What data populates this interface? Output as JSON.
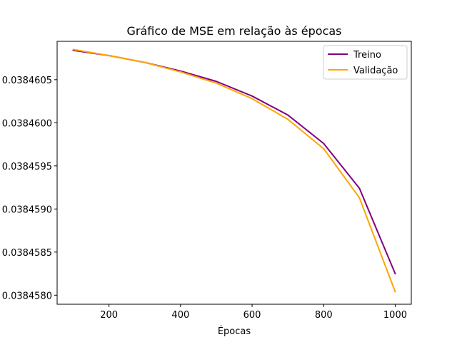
{
  "chart_data": {
    "type": "line",
    "title": "Gráfico de MSE em relação às épocas",
    "xlabel": "Épocas",
    "ylabel": "",
    "x": [
      100,
      200,
      300,
      400,
      500,
      600,
      700,
      800,
      900,
      1000
    ],
    "series": [
      {
        "name": "Treino",
        "color": "#800080",
        "values": [
          0.03846084,
          0.03846078,
          0.0384607,
          0.0384606,
          0.03846048,
          0.03846031,
          0.03846009,
          0.03845976,
          0.03845924,
          0.03845825
        ]
      },
      {
        "name": "Validação",
        "color": "#FFA500",
        "values": [
          0.03846085,
          0.03846078,
          0.0384607,
          0.03846059,
          0.03846046,
          0.03846028,
          0.03846004,
          0.0384597,
          0.03845913,
          0.03845804
        ]
      }
    ],
    "xticks": [
      200,
      400,
      600,
      800,
      1000
    ],
    "xtick_labels": [
      "200",
      "400",
      "600",
      "800",
      "1000"
    ],
    "yticks": [
      0.038458,
      0.0384585,
      0.038459,
      0.0384595,
      0.03846,
      0.0384605
    ],
    "ytick_labels": [
      "0.0384580",
      "0.0384585",
      "0.0384590",
      "0.0384595",
      "0.0384600",
      "0.0384605"
    ],
    "xlim": [
      55,
      1045
    ],
    "ylim": [
      0.038457895,
      0.038460945
    ],
    "grid": false,
    "legend_position": "top-right"
  }
}
